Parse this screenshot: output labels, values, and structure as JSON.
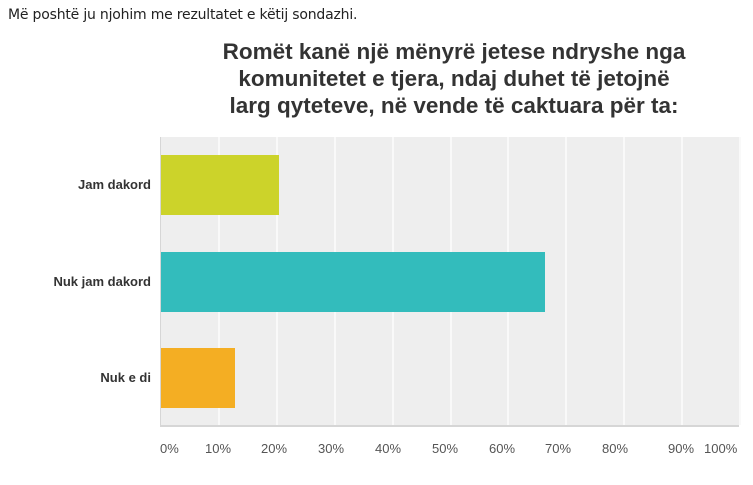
{
  "intro_text": "Më poshtë ju njohim me rezultatet e këtij sondazhi.",
  "chart_data": {
    "type": "bar",
    "orientation": "horizontal",
    "title": "Romët kanë një mënyrë jetese ndryshe nga komunitetet e tjera, ndaj duhet të jetojnë larg qyteteve, në vende të caktuara për ta:",
    "title_lines": [
      "Romët kanë një mënyrë jetese ndryshe nga",
      "komunitetet e tjera, ndaj duhet të jetojnë",
      "larg qyteteve, në vende të caktuara për ta:"
    ],
    "categories": [
      "Jam dakord",
      "Nuk jam dakord",
      "Nuk e di"
    ],
    "values": [
      20.4,
      66.3,
      12.8
    ],
    "colors": [
      "#ccd32a",
      "#33bcbc",
      "#f4ae23"
    ],
    "xlabel": "",
    "ylabel": "",
    "xlim": [
      0,
      100
    ],
    "x_ticks": [
      "0%",
      "10%",
      "20%",
      "30%",
      "40%",
      "50%",
      "60%",
      "70%",
      "80%",
      "90%",
      "100%"
    ],
    "grid": true,
    "legend": "none"
  }
}
